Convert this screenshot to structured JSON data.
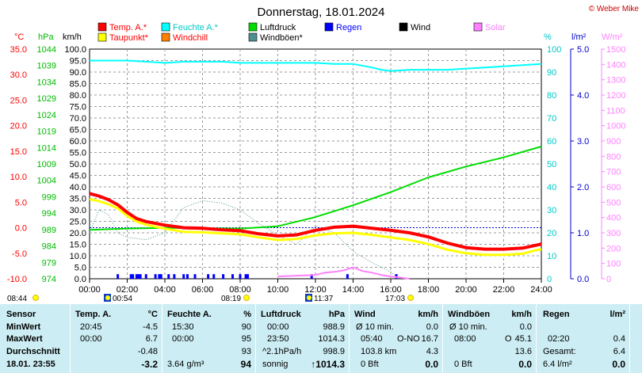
{
  "title": "Donnerstag, 18.01.2024",
  "copyright": "© Weber Mike",
  "colors": {
    "temp": "#ff0000",
    "dew": "#ffff00",
    "humidity": "#00ffff",
    "windchill": "#ff8000",
    "pressure": "#00dd00",
    "gust": "#4f8f8f",
    "rain": "#0000ff",
    "wind": "#000000",
    "solar": "#ff80ff",
    "pressureAxis": "#00bb00"
  },
  "legend": [
    {
      "label": "Temp. A.*",
      "color": "#ff0000",
      "text_color": "#ff0000"
    },
    {
      "label": "Feuchte A.*",
      "color": "#00ffff",
      "text_color": "#00c8c8"
    },
    {
      "label": "Luftdruck",
      "color": "#00dd00",
      "text_color": "#000000"
    },
    {
      "label": "Regen",
      "color": "#0000ff",
      "text_color": "#0000ff"
    },
    {
      "label": "Wind",
      "color": "#000000",
      "text_color": "#000000"
    },
    {
      "label": "Solar",
      "color": "#ff80ff",
      "text_color": "#ff80ff"
    },
    {
      "label": "Taupunkt*",
      "color": "#ffff00",
      "text_color": "#ff0000"
    },
    {
      "label": "Windchill",
      "color": "#ff8000",
      "text_color": "#ff0000"
    },
    {
      "label": "Windböen*",
      "color": "#4f8f8f",
      "text_color": "#000000"
    }
  ],
  "axis_units": {
    "temp": "°C",
    "pressure": "hPa",
    "wind": "km/h",
    "humidity": "%",
    "rain": "l/m²",
    "solar": "W/m²"
  },
  "axes": {
    "temp_ticks": [
      "35.0",
      "30.0",
      "25.0",
      "20.0",
      "15.0",
      "10.0",
      "5.0",
      "0.0",
      "-5.0",
      "-10.0"
    ],
    "pressure_ticks": [
      "1044",
      "1039",
      "1034",
      "1029",
      "1024",
      "1019",
      "1014",
      "1009",
      "1004",
      "999",
      "994",
      "989",
      "984",
      "979",
      "974"
    ],
    "wind_ticks": [
      "100.0",
      "95.0",
      "90.0",
      "85.0",
      "80.0",
      "75.0",
      "70.0",
      "65.0",
      "60.0",
      "55.0",
      "50.0",
      "45.0",
      "40.0",
      "35.0",
      "30.0",
      "25.0",
      "20.0",
      "15.0",
      "10.0",
      "5.0",
      "0.0"
    ],
    "humidity_ticks": [
      "100",
      "90",
      "80",
      "70",
      "60",
      "50",
      "40",
      "30",
      "20",
      "10",
      "0"
    ],
    "rain_ticks": [
      "5.0",
      "4.0",
      "3.0",
      "2.0",
      "1.0",
      "0.0"
    ],
    "solar_ticks": [
      "1500",
      "1400",
      "1300",
      "1200",
      "1100",
      "1000",
      "900",
      "800",
      "700",
      "600",
      "500",
      "400",
      "300",
      "200",
      "100",
      "0"
    ],
    "time_ticks": [
      "00:00",
      "02:00",
      "04:00",
      "06:00",
      "08:00",
      "10:00",
      "12:00",
      "14:00",
      "16:00",
      "18:00",
      "20:00",
      "22:00",
      "24:00"
    ]
  },
  "sun_markers": [
    {
      "label": "08:44",
      "kind": "sun"
    },
    {
      "label": "00:54",
      "kind": "moon"
    },
    {
      "label": "08:19",
      "kind": "sun"
    },
    {
      "label": "11:37",
      "kind": "moon"
    },
    {
      "label": "17:03",
      "kind": "sun"
    }
  ],
  "chart_data": {
    "type": "line",
    "title": "Donnerstag, 18.01.2024",
    "x_unit": "hour of day",
    "xlim": [
      0,
      24
    ],
    "temp_ylim": [
      -10,
      35
    ],
    "pressure_ylim": [
      974,
      1044
    ],
    "wind_ylim": [
      0,
      100
    ],
    "humidity_ylim": [
      0,
      100
    ],
    "rain_ylim": [
      0,
      5
    ],
    "solar_ylim": [
      0,
      1500
    ],
    "grid": true,
    "series": [
      {
        "name": "Temp. A.*",
        "axis": "temp",
        "x": [
          0,
          0.5,
          1,
          1.5,
          2,
          2.5,
          3,
          4,
          5,
          6,
          7,
          8,
          9,
          10,
          11,
          12,
          13,
          14,
          15,
          16,
          17,
          18,
          19,
          20,
          21,
          22,
          23,
          23.5,
          24
        ],
        "y": [
          6.7,
          6.2,
          5.5,
          4.5,
          3.0,
          1.8,
          1.2,
          0.5,
          0.0,
          -0.1,
          -0.4,
          -0.6,
          -1.2,
          -1.6,
          -1.4,
          -0.5,
          0.1,
          0.3,
          -0.1,
          -0.5,
          -1.0,
          -1.8,
          -3.0,
          -3.9,
          -4.2,
          -4.2,
          -4.0,
          -3.6,
          -3.2
        ]
      },
      {
        "name": "Taupunkt*",
        "axis": "temp",
        "x": [
          0,
          0.5,
          1,
          1.5,
          2,
          2.5,
          3,
          4,
          5,
          6,
          7,
          8,
          9,
          10,
          11,
          12,
          13,
          14,
          15,
          16,
          17,
          18,
          19,
          20,
          21,
          22,
          23,
          23.5,
          24
        ],
        "y": [
          5.6,
          5.2,
          4.6,
          3.8,
          2.3,
          1.2,
          0.6,
          -0.2,
          -0.8,
          -0.9,
          -1.1,
          -1.3,
          -1.9,
          -2.4,
          -2.2,
          -1.5,
          -1.1,
          -1.0,
          -1.4,
          -1.9,
          -2.4,
          -3.2,
          -4.3,
          -5.0,
          -5.3,
          -5.3,
          -5.1,
          -4.6,
          -4.2
        ]
      },
      {
        "name": "Feuchte A.*",
        "axis": "humidity",
        "x": [
          0,
          1,
          2,
          3,
          4,
          5,
          6,
          7,
          8,
          9,
          10,
          11,
          12,
          13,
          14,
          15,
          15.5,
          16,
          17,
          18,
          19,
          20,
          21,
          22,
          23,
          24
        ],
        "y": [
          95,
          95,
          95,
          94.5,
          94,
          94.5,
          94.5,
          94.5,
          94,
          94,
          94,
          94,
          94,
          93.5,
          93.5,
          92,
          91,
          90.5,
          91,
          91,
          91,
          91.5,
          92,
          92.5,
          93,
          93.5
        ]
      },
      {
        "name": "Luftdruck",
        "axis": "pressure",
        "x": [
          0,
          2,
          4,
          6,
          8,
          10,
          12,
          14,
          16,
          18,
          20,
          22,
          24
        ],
        "y": [
          988.9,
          989.3,
          989.5,
          989.4,
          989.3,
          990.0,
          992.8,
          996.4,
          1000.4,
          1004.9,
          1008.2,
          1011.0,
          1014.3
        ]
      },
      {
        "name": "Regen",
        "axis": "rain",
        "type": "bar",
        "x": [
          1.5,
          2.2,
          2.3,
          2.5,
          2.6,
          2.7,
          3.0,
          3.5,
          3.7,
          3.8,
          4.2,
          4.5,
          5.0,
          5.2,
          5.6,
          6.3,
          6.6,
          7.1,
          7.6,
          8.0,
          8.3,
          8.4,
          11.8,
          13.7,
          16.3
        ],
        "y": [
          0.1,
          0.1,
          0.1,
          0.1,
          0.1,
          0.1,
          0.1,
          0.1,
          0.1,
          0.1,
          0.1,
          0.1,
          0.1,
          0.1,
          0.1,
          0.1,
          0.1,
          0.1,
          0.1,
          0.1,
          0.1,
          0.1,
          0.1,
          0.1,
          0.1
        ]
      },
      {
        "name": "Solar",
        "axis": "solar",
        "x": [
          10,
          11,
          12,
          12.5,
          13,
          13.5,
          14,
          14.5,
          15,
          15.5,
          16,
          16.5,
          17
        ],
        "y": [
          15,
          20,
          25,
          40,
          45,
          55,
          75,
          50,
          40,
          25,
          15,
          8,
          0
        ]
      },
      {
        "name": "Windböen*",
        "axis": "wind",
        "x": [
          0,
          0.5,
          1,
          1.5,
          2,
          3,
          4,
          5,
          6,
          7,
          8,
          9,
          10,
          11,
          12,
          13,
          14,
          15,
          16,
          16.5
        ],
        "y": [
          20,
          30,
          28,
          20,
          18,
          17,
          20,
          31,
          34,
          33,
          30,
          24,
          19,
          15,
          23,
          20,
          12,
          7,
          3,
          0
        ]
      }
    ]
  },
  "summary": {
    "row_labels": [
      "Sensor",
      "MinWert",
      "MaxWert",
      "Durchschnitt",
      "18.01. 23:55"
    ],
    "temp": {
      "title": "Temp. A.",
      "unit": "°C",
      "rows": [
        [
          "20:45",
          "-4.5"
        ],
        [
          "00:00",
          "6.7"
        ],
        [
          "",
          "-0.48"
        ],
        [
          "",
          "-3.2"
        ]
      ]
    },
    "hum": {
      "title": "Feuchte A.",
      "unit": "%",
      "rows": [
        [
          "15:30",
          "90"
        ],
        [
          "00:00",
          "95"
        ],
        [
          "",
          "93"
        ],
        [
          "3.64 g/m³",
          "94"
        ]
      ]
    },
    "press": {
      "title": "Luftdruck",
      "unit": "hPa",
      "rows": [
        [
          "00:00",
          "988.9"
        ],
        [
          "23:50",
          "1014.3"
        ],
        [
          "^2.1hPa/h",
          "998.9"
        ],
        [
          "sonnig",
          "↑1014.3"
        ]
      ]
    },
    "wind": {
      "title": "Wind",
      "unit": "km/h",
      "rows": [
        [
          "Ø 10 min.",
          "",
          "0.0"
        ],
        [
          "05:40",
          "O-NO",
          "16.7"
        ],
        [
          "103.8 km",
          "",
          "4.3"
        ],
        [
          "0 Bft",
          "",
          "0.0"
        ]
      ]
    },
    "gust": {
      "title": "Windböen",
      "unit": "km/h",
      "rows": [
        [
          "Ø 10 min.",
          "",
          "0.0"
        ],
        [
          "08:00",
          "O",
          "45.1"
        ],
        [
          "",
          "",
          "13.6"
        ],
        [
          "0 Bft",
          "",
          "0.0"
        ]
      ]
    },
    "rain": {
      "title": "Regen",
      "unit": "l/m²",
      "rows": [
        [
          "",
          ""
        ],
        [
          "02:20",
          "0.4"
        ],
        [
          "Gesamt:",
          "6.4"
        ],
        [
          "6.4 l/m²",
          "0.0"
        ]
      ]
    }
  }
}
